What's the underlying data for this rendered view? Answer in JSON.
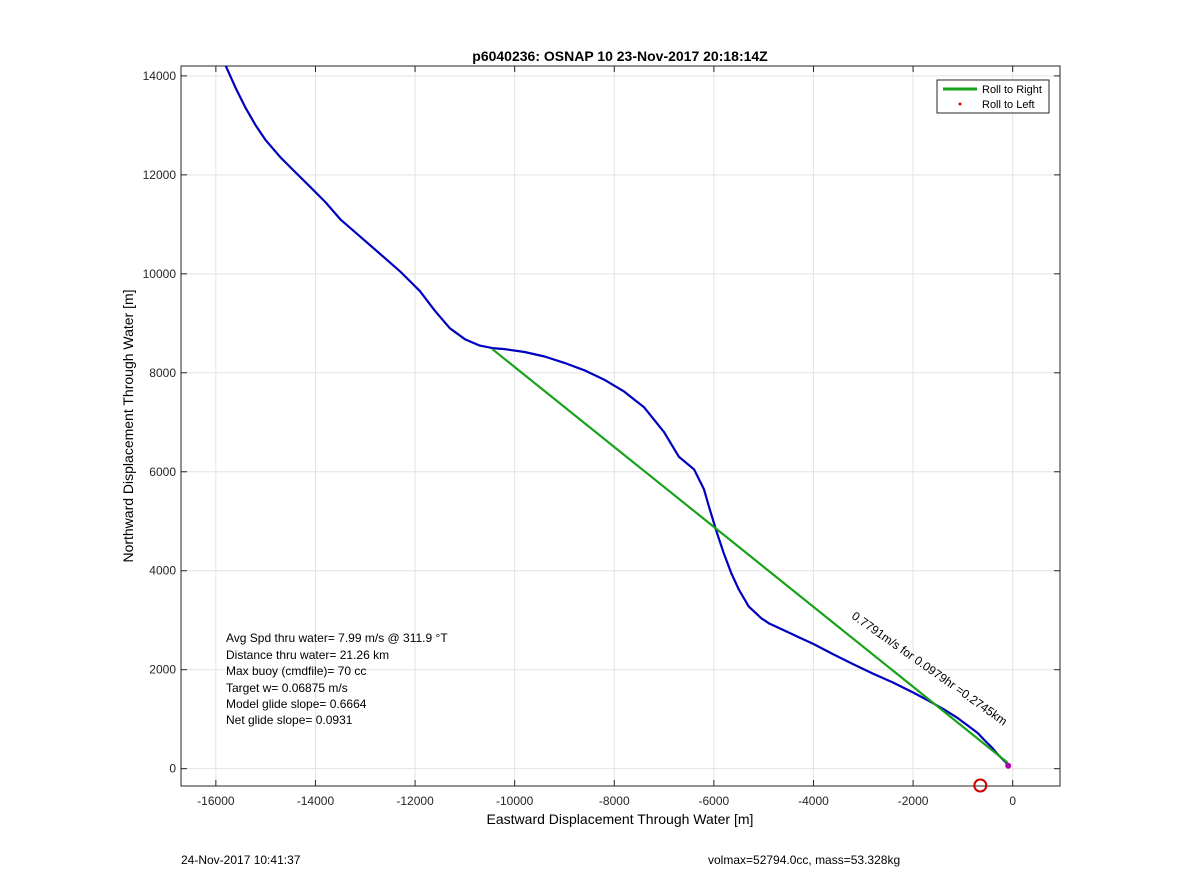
{
  "footer": {
    "date": "24-Nov-2017 10:41:37",
    "volmax": "volmax=52794.0cc, mass=53.328kg"
  },
  "chart_data": {
    "type": "line",
    "title": "p6040236: OSNAP 10 23-Nov-2017 20:18:14Z",
    "xlabel": "Eastward Displacement Through Water [m]",
    "ylabel": "Northward Displacement Through Water [m]",
    "xlim": [
      -16700,
      950
    ],
    "ylim": [
      -350,
      14200
    ],
    "xticks": [
      -16000,
      -14000,
      -12000,
      -10000,
      -8000,
      -6000,
      -4000,
      -2000,
      0
    ],
    "yticks": [
      0,
      2000,
      4000,
      6000,
      8000,
      10000,
      12000,
      14000
    ],
    "grid": true,
    "legend_position": "top-right",
    "legend": [
      "Roll to Right",
      "Roll to Left"
    ],
    "colors": {
      "track": "#0000c0",
      "roll_right": "#1aa31a",
      "roll_left": "#e00000",
      "marker": "#cc0000"
    },
    "series": [
      {
        "name": "",
        "color": "#0000c0",
        "x": [
          -100,
          -130,
          -200,
          -300,
          -420,
          -560,
          -700,
          -900,
          -1100,
          -1400,
          -1700,
          -2000,
          -2400,
          -2800,
          -3200,
          -3600,
          -4000,
          -4300,
          -4600,
          -4900,
          -5050,
          -5300,
          -5500,
          -5650,
          -5800,
          -5950,
          -6100,
          -6200,
          -6400,
          -6700,
          -7000,
          -7400,
          -7800,
          -8200,
          -8600,
          -9000,
          -9400,
          -9800,
          -10200,
          -10450,
          -10700,
          -11000,
          -11300,
          -11600,
          -11900,
          -12300,
          -12700,
          -13100,
          -13500,
          -13800,
          -14100,
          -14400,
          -14700,
          -15000,
          -15200,
          -15400,
          -15600,
          -15800
        ],
        "y": [
          60,
          120,
          190,
          290,
          430,
          570,
          720,
          870,
          1020,
          1210,
          1380,
          1540,
          1740,
          1920,
          2110,
          2310,
          2520,
          2660,
          2800,
          2940,
          3040,
          3280,
          3620,
          3950,
          4350,
          4800,
          5300,
          5650,
          6050,
          6300,
          6800,
          7300,
          7620,
          7860,
          8050,
          8200,
          8330,
          8420,
          8480,
          8500,
          8550,
          8680,
          8900,
          9250,
          9650,
          10050,
          10400,
          10750,
          11100,
          11450,
          11750,
          12050,
          12350,
          12700,
          13000,
          13350,
          13750,
          14200
        ]
      },
      {
        "name": "Roll to Right",
        "color": "#1aa31a",
        "x": [
          -100,
          -10450
        ],
        "y": [
          120,
          8480
        ]
      },
      {
        "name": "Roll to Left",
        "color": "#e00000",
        "x": [
          -100
        ],
        "y": [
          60
        ]
      }
    ],
    "markers": [
      {
        "type": "circle",
        "x": -650,
        "y": -340,
        "color": "#cc0000"
      },
      {
        "type": "point",
        "x": -90,
        "y": 60,
        "color": "#b000b0"
      }
    ],
    "annotations": [
      "Avg Spd thru water=  7.99 m/s @ 311.9 °T",
      "Distance thru water= 21.26 km",
      "Max buoy (cmdfile)= 70 cc",
      "Target w= 0.06875 m/s",
      "Model glide slope= 0.6664",
      "Net glide slope= 0.0931"
    ],
    "rotated_annotation": "0.7791m/s for 0.0979hr =0.2745km",
    "rotated_annotation_angle": 35.3,
    "rotated_annotation_anchor": {
      "x": -3250,
      "y": 3050
    }
  }
}
